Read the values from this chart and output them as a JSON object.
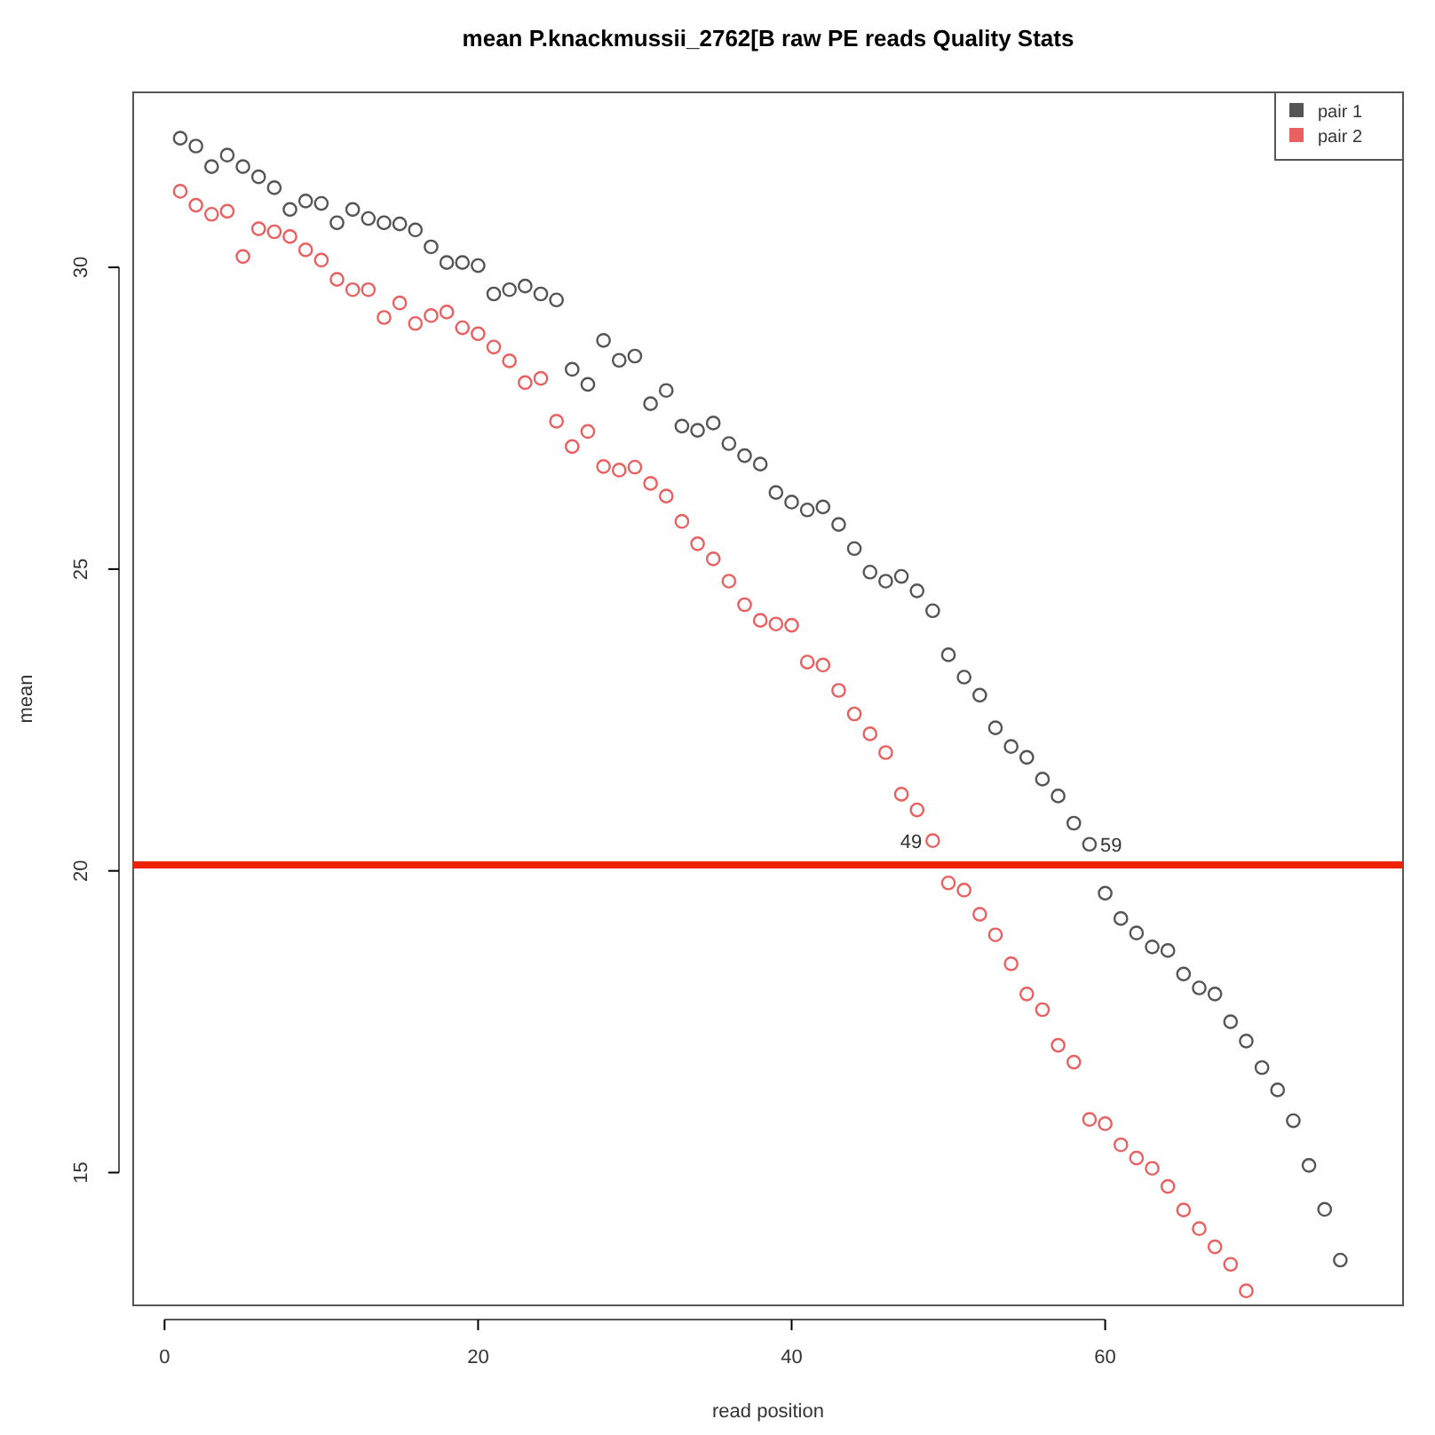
{
  "chart_data": {
    "type": "scatter",
    "title": "mean P.knackmussii_2762[B raw PE reads Quality Stats",
    "xlabel": "read position",
    "ylabel": "mean",
    "xlim": [
      -2,
      79
    ],
    "xticks": [
      0,
      20,
      40,
      60
    ],
    "ylim": [
      12.8,
      32.9
    ],
    "yticks": [
      15,
      20,
      25,
      30
    ],
    "grid": false,
    "legend": "top right",
    "marker": "circle",
    "series": [
      {
        "name": "pair 1",
        "color": "#555555",
        "x": [
          1,
          2,
          3,
          4,
          5,
          6,
          7,
          8,
          9,
          10,
          11,
          12,
          13,
          14,
          15,
          16,
          17,
          18,
          19,
          20,
          21,
          22,
          23,
          24,
          25,
          26,
          27,
          28,
          29,
          30,
          31,
          32,
          33,
          34,
          35,
          36,
          37,
          38,
          39,
          40,
          41,
          42,
          43,
          44,
          45,
          46,
          47,
          48,
          49,
          50,
          51,
          52,
          53,
          54,
          55,
          56,
          57,
          58,
          59,
          60,
          61,
          62,
          63,
          64,
          65,
          66,
          67,
          68,
          69,
          70,
          71,
          72,
          73,
          74,
          75
        ],
        "values": [
          32.14,
          32.01,
          31.67,
          31.86,
          31.67,
          31.5,
          31.32,
          30.96,
          31.1,
          31.06,
          30.74,
          30.96,
          30.81,
          30.74,
          30.72,
          30.62,
          30.34,
          30.08,
          30.08,
          30.03,
          29.56,
          29.63,
          29.69,
          29.56,
          29.46,
          28.31,
          28.06,
          28.79,
          28.46,
          28.53,
          27.74,
          27.96,
          27.37,
          27.3,
          27.42,
          27.08,
          26.88,
          26.74,
          26.27,
          26.11,
          25.98,
          26.03,
          25.74,
          25.34,
          24.95,
          24.8,
          24.88,
          24.64,
          24.31,
          23.58,
          23.21,
          22.91,
          22.37,
          22.06,
          21.88,
          21.52,
          21.24,
          20.79,
          20.44,
          19.63,
          19.21,
          18.97,
          18.74,
          18.68,
          18.29,
          18.06,
          17.96,
          17.5,
          17.18,
          16.74,
          16.37,
          15.86,
          15.12,
          14.39,
          13.55
        ]
      },
      {
        "name": "pair 2",
        "color": "#e86060",
        "x": [
          1,
          2,
          3,
          4,
          5,
          6,
          7,
          8,
          9,
          10,
          11,
          12,
          13,
          14,
          15,
          16,
          17,
          18,
          19,
          20,
          21,
          22,
          23,
          24,
          25,
          26,
          27,
          28,
          29,
          30,
          31,
          32,
          33,
          34,
          35,
          36,
          37,
          38,
          39,
          40,
          41,
          42,
          43,
          44,
          45,
          46,
          47,
          48,
          49,
          50,
          51,
          52,
          53,
          54,
          55,
          56,
          57,
          58,
          59,
          60,
          61,
          62,
          63,
          64,
          65,
          66,
          67,
          68,
          69
        ],
        "values": [
          31.26,
          31.03,
          30.88,
          30.93,
          30.18,
          30.64,
          30.59,
          30.51,
          30.29,
          30.12,
          29.8,
          29.63,
          29.63,
          29.17,
          29.41,
          29.07,
          29.2,
          29.26,
          29.0,
          28.9,
          28.68,
          28.45,
          28.09,
          28.16,
          27.45,
          27.03,
          27.28,
          26.7,
          26.64,
          26.69,
          26.42,
          26.21,
          25.79,
          25.42,
          25.17,
          24.8,
          24.41,
          24.15,
          24.09,
          24.07,
          23.46,
          23.41,
          22.99,
          22.6,
          22.27,
          21.96,
          21.27,
          21.01,
          20.5,
          19.8,
          19.68,
          19.28,
          18.94,
          18.46,
          17.96,
          17.7,
          17.11,
          16.83,
          15.88,
          15.81,
          15.46,
          15.24,
          15.07,
          14.77,
          14.38,
          14.07,
          13.77,
          13.48,
          13.04
        ]
      }
    ],
    "ref_lines": [
      {
        "axis": "y",
        "value": 20.1,
        "color": "#ee2200"
      }
    ],
    "annotations": [
      {
        "text": "49",
        "x": 49,
        "y": 20.5
      },
      {
        "text": "59",
        "x": 59,
        "y": 20.44
      }
    ]
  }
}
